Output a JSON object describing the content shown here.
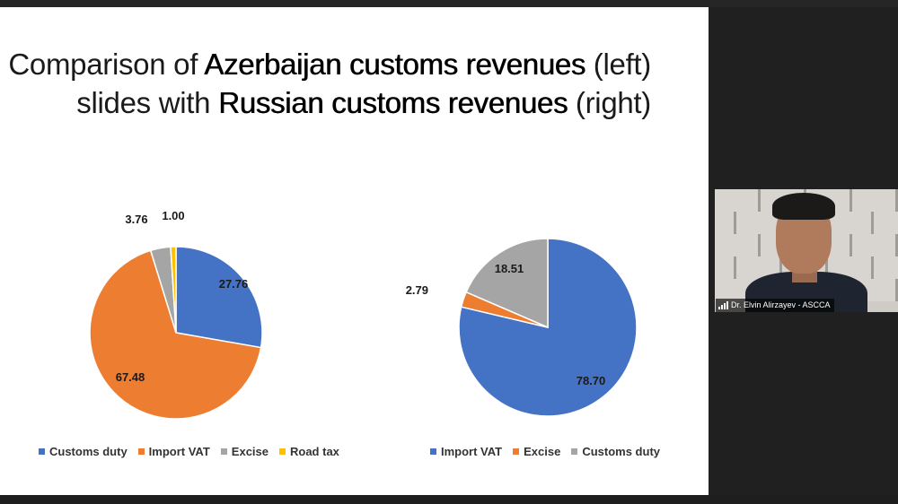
{
  "slide": {
    "title_line1_prefix": "Comparison of ",
    "title_line1_bold": "Azerbaijan customs revenues",
    "title_line1_suffix": " (left)",
    "title_line2_prefix": "slides with ",
    "title_line2_bold": "Russian customs revenues",
    "title_line2_suffix": " (right)"
  },
  "chart_data": [
    {
      "type": "pie",
      "categories": [
        "Customs duty",
        "Import VAT",
        "Excise",
        "Road tax"
      ],
      "values": [
        27.76,
        67.48,
        3.76,
        1.0
      ],
      "labels": [
        "27.76",
        "67.48",
        "3.76",
        "1.00"
      ],
      "colors": [
        "#4472c4",
        "#ed7d31",
        "#a5a5a5",
        "#ffc000"
      ],
      "legend_position": "bottom"
    },
    {
      "type": "pie",
      "categories": [
        "Import VAT",
        "Excise",
        "Customs duty"
      ],
      "values": [
        78.7,
        2.79,
        18.51
      ],
      "labels": [
        "78.70",
        "2.79",
        "18.51"
      ],
      "colors": [
        "#4472c4",
        "#ed7d31",
        "#a5a5a5"
      ],
      "legend_position": "bottom"
    }
  ],
  "video": {
    "participant_name": "Dr. Elvin Alirzayev - ASCCA",
    "icon": "signal-bars-icon"
  }
}
